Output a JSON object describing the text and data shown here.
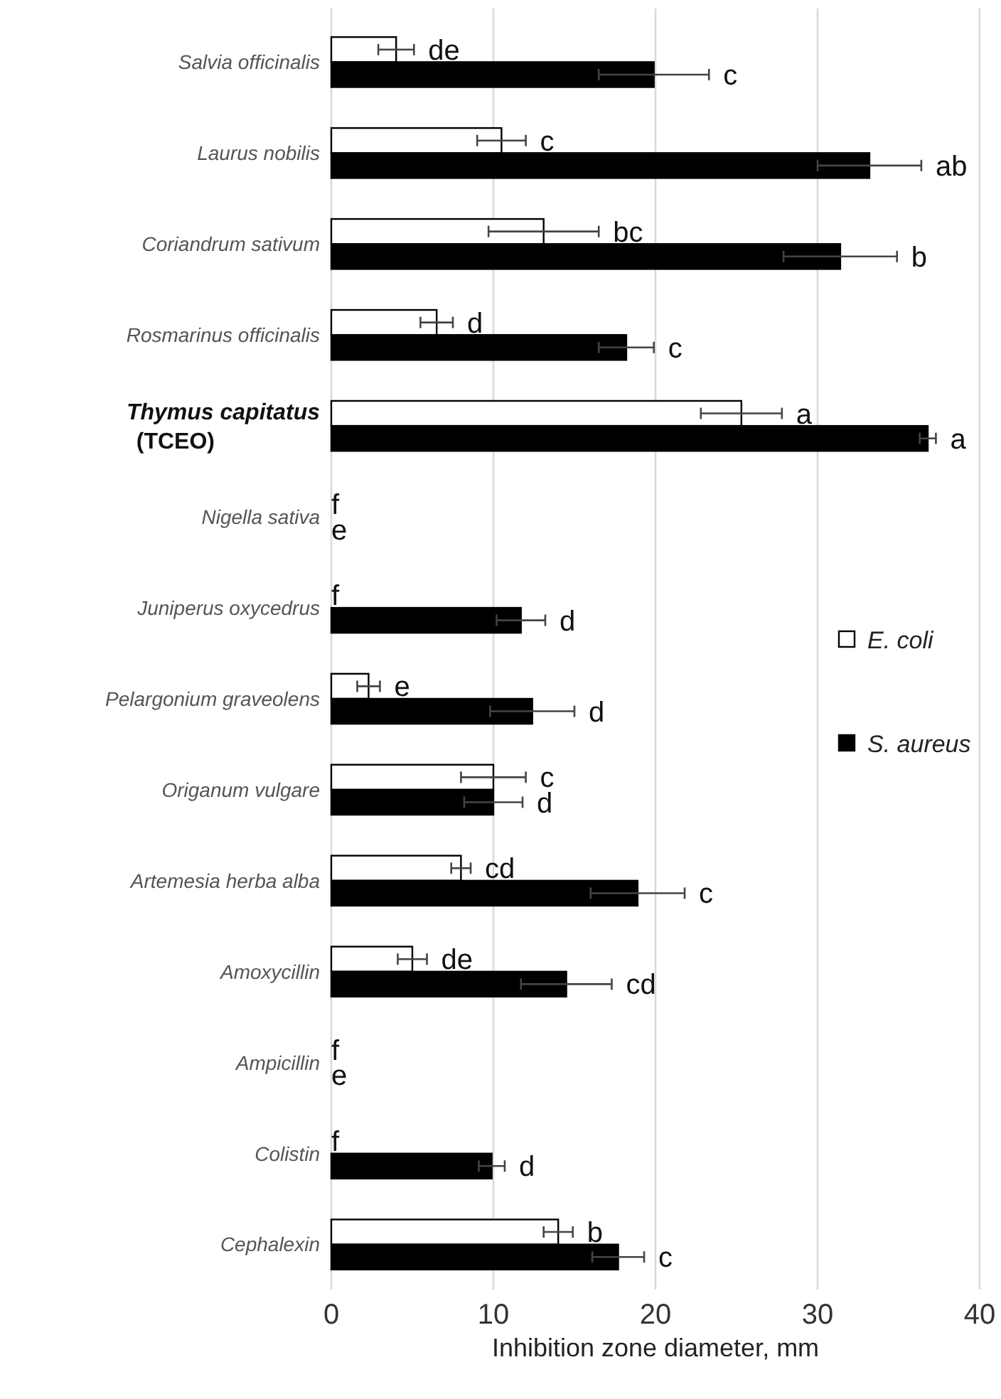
{
  "chart_data": {
    "type": "bar",
    "orientation": "horizontal",
    "xlabel": "Inhibition zone diameter, mm",
    "categories": [
      "Salvia officinalis",
      "Laurus nobilis",
      "Coriandrum sativum",
      "Rosmarinus officinalis",
      "Thymus capitatus (TCEO)",
      "Nigella sativa",
      "Juniperus oxycedrus",
      "Pelargonium graveolens",
      "Origanum vulgare",
      "Artemesia herba alba",
      "Amoxycillin",
      "Ampicillin",
      "Colistin",
      "Cephalexin"
    ],
    "series": [
      {
        "name": "E. coli",
        "color": "#ffffff",
        "values": [
          4.0,
          10.5,
          13.1,
          6.5,
          25.3,
          0,
          0,
          2.3,
          10.0,
          8.0,
          5.0,
          0,
          0,
          14.0
        ],
        "errors": [
          1.1,
          1.5,
          3.4,
          1.0,
          2.5,
          null,
          null,
          0.7,
          2.0,
          0.6,
          0.9,
          null,
          null,
          0.9
        ],
        "value_labels": [
          "de",
          "c",
          "bc",
          "d",
          "a",
          "f",
          "f",
          "e",
          "c",
          "cd",
          "de",
          "f",
          "f",
          "b"
        ]
      },
      {
        "name": "S. aureus",
        "color": "#000000",
        "values": [
          19.9,
          33.2,
          31.4,
          18.2,
          36.8,
          0,
          11.7,
          12.4,
          10.0,
          18.9,
          14.5,
          0,
          9.9,
          17.7
        ],
        "errors": [
          3.4,
          3.2,
          3.5,
          1.7,
          0.5,
          null,
          1.5,
          2.6,
          1.8,
          2.9,
          2.8,
          null,
          0.8,
          1.6
        ],
        "value_labels": [
          "c",
          "ab",
          "b",
          "c",
          "a",
          "e",
          "d",
          "d",
          "d",
          "c",
          "cd",
          "e",
          "d",
          "c"
        ]
      }
    ],
    "xlim": [
      0,
      40
    ],
    "xticks": [
      0,
      10,
      20,
      30,
      40
    ],
    "grid": "x",
    "legend": "right"
  }
}
